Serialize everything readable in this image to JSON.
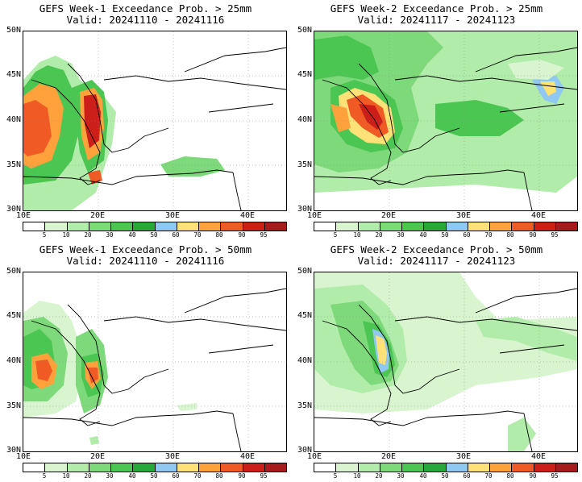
{
  "panels": [
    {
      "title": "GEFS Week-1 Exceedance Prob. > 25mm",
      "valid": "Valid: 20241110 - 20241116"
    },
    {
      "title": "GEFS Week-2 Exceedance Prob. > 25mm",
      "valid": "Valid: 20241117 - 20241123"
    },
    {
      "title": "GEFS Week-1 Exceedance Prob. > 50mm",
      "valid": "Valid: 20241110 - 20241116"
    },
    {
      "title": "GEFS Week-2 Exceedance Prob. > 50mm",
      "valid": "Valid: 20241117 - 20241123"
    }
  ],
  "lat_labels": [
    "50N",
    "45N",
    "40N",
    "35N",
    "30N"
  ],
  "lon_labels": [
    "10E",
    "20E",
    "30E",
    "40E"
  ],
  "colorbar": {
    "ticks": [
      "5",
      "10",
      "20",
      "30",
      "40",
      "50",
      "60",
      "70",
      "80",
      "90",
      "95"
    ],
    "colors": [
      "#ffffff",
      "#d8f5d0",
      "#b2ecaa",
      "#7ed97a",
      "#4cc653",
      "#27a83a",
      "#8fc8f0",
      "#ffe277",
      "#ffa23c",
      "#f05a24",
      "#cc1f1a",
      "#a61b1b"
    ]
  },
  "map_colors": {
    "c10": "#d8f5d0",
    "c20": "#b2ecaa",
    "c30": "#7ed97a",
    "c40": "#4cc653",
    "c50": "#27a83a",
    "c60": "#8fc8f0",
    "c70": "#ffe277",
    "c80": "#ffa23c",
    "c90": "#f05a24",
    "c95": "#cc1f1a"
  }
}
